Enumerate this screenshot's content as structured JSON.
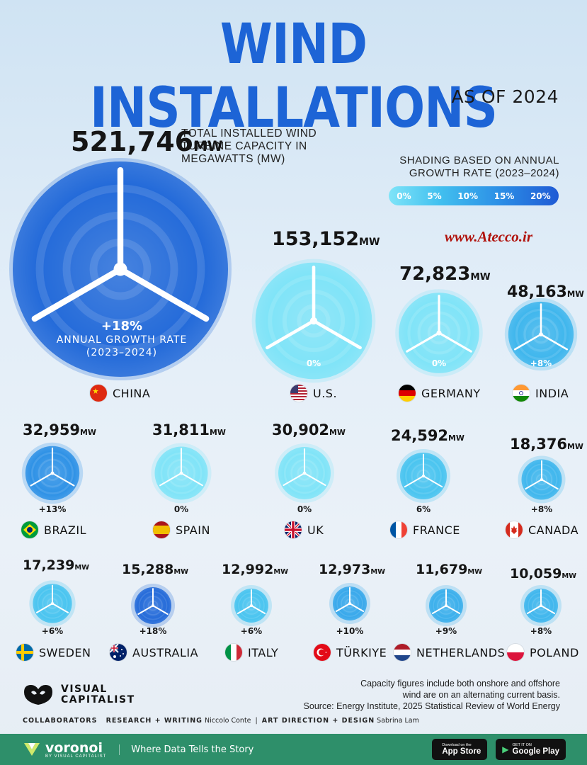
{
  "header": {
    "title": "WIND INSTALLATIONS",
    "subtitle": "AS OF 2024"
  },
  "description": "TOTAL INSTALLED WIND TURBINE CAPACITY IN MEGAWATTS (MW)",
  "unit": "MW",
  "legend": {
    "title": "SHADING BASED ON ANNUAL GROWTH RATE (2023–2024)",
    "ticks": [
      "0%",
      "5%",
      "10%",
      "15%",
      "20%"
    ],
    "colors": [
      "#7fe4f8",
      "#42c0ef",
      "#2c8fe6",
      "#1f5ad4"
    ]
  },
  "watermark": "www.Atecco.ir",
  "china_rate_label": "ANNUAL GROWTH RATE (2023–2024)",
  "chart_data": {
    "type": "bubble",
    "title": "WIND INSTALLATIONS",
    "subtitle": "AS OF 2024",
    "value_label": "TOTAL INSTALLED WIND TURBINE CAPACITY IN MEGAWATTS (MW)",
    "color_label": "SHADING BASED ON ANNUAL GROWTH RATE (2023–2024)",
    "color_scale": [
      0,
      20
    ],
    "series": [
      {
        "country": "CHINA",
        "capacity": "521,746",
        "value": 521746,
        "growth_label": "+18%",
        "growth": 18
      },
      {
        "country": "U.S.",
        "capacity": "153,152",
        "value": 153152,
        "growth_label": "0%",
        "growth": 0
      },
      {
        "country": "GERMANY",
        "capacity": "72,823",
        "value": 72823,
        "growth_label": "0%",
        "growth": 0
      },
      {
        "country": "INDIA",
        "capacity": "48,163",
        "value": 48163,
        "growth_label": "+8%",
        "growth": 8
      },
      {
        "country": "BRAZIL",
        "capacity": "32,959",
        "value": 32959,
        "growth_label": "+13%",
        "growth": 13
      },
      {
        "country": "SPAIN",
        "capacity": "31,811",
        "value": 31811,
        "growth_label": "0%",
        "growth": 0
      },
      {
        "country": "UK",
        "capacity": "30,902",
        "value": 30902,
        "growth_label": "0%",
        "growth": 0
      },
      {
        "country": "FRANCE",
        "capacity": "24,592",
        "value": 24592,
        "growth_label": "6%",
        "growth": 6
      },
      {
        "country": "CANADA",
        "capacity": "18,376",
        "value": 18376,
        "growth_label": "+8%",
        "growth": 8
      },
      {
        "country": "SWEDEN",
        "capacity": "17,239",
        "value": 17239,
        "growth_label": "+6%",
        "growth": 6
      },
      {
        "country": "AUSTRALIA",
        "capacity": "15,288",
        "value": 15288,
        "growth_label": "+18%",
        "growth": 18
      },
      {
        "country": "ITALY",
        "capacity": "12,992",
        "value": 12992,
        "growth_label": "+6%",
        "growth": 6
      },
      {
        "country": "TÜRKIYE",
        "capacity": "12,973",
        "value": 12973,
        "growth_label": "+10%",
        "growth": 10
      },
      {
        "country": "NETHERLANDS",
        "capacity": "11,679",
        "value": 11679,
        "growth_label": "+9%",
        "growth": 9
      },
      {
        "country": "POLAND",
        "capacity": "10,059",
        "value": 10059,
        "growth_label": "+8%",
        "growth": 8
      }
    ]
  },
  "footer": {
    "note_line1": "Capacity figures include both onshore and offshore",
    "note_line2": "wind are on an alternating current basis.",
    "source": "Source: Energy Institute, 2025 Statistical Review of World Energy",
    "logo_line1": "VISUAL",
    "logo_line2": "CAPITALIST",
    "collaborators": "COLLABORATORS",
    "research_label": "RESEARCH + WRITING",
    "research_name": "Niccolo Conte",
    "design_label": "ART DIRECTION + DESIGN",
    "design_name": "Sabrina Lam"
  },
  "bottombar": {
    "brand": "voronoi",
    "brand_by": "BY VISUAL CAPITALIST",
    "tagline": "Where Data Tells the Story",
    "appstore_small": "Download on the",
    "appstore": "App Store",
    "googleplay_small": "GET IT ON",
    "googleplay": "Google Play"
  }
}
